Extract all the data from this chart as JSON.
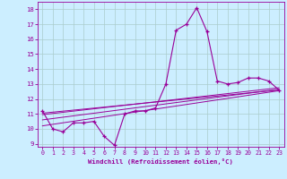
{
  "xlabel": "Windchill (Refroidissement éolien,°C)",
  "bg_color": "#cceeff",
  "grid_color": "#aacccc",
  "line_color": "#990099",
  "xlim": [
    -0.5,
    23.5
  ],
  "ylim": [
    8.8,
    18.5
  ],
  "yticks": [
    9,
    10,
    11,
    12,
    13,
    14,
    15,
    16,
    17,
    18
  ],
  "xticks": [
    0,
    1,
    2,
    3,
    4,
    5,
    6,
    7,
    8,
    9,
    10,
    11,
    12,
    13,
    14,
    15,
    16,
    17,
    18,
    19,
    20,
    21,
    22,
    23
  ],
  "main_x": [
    0,
    1,
    2,
    3,
    4,
    5,
    6,
    7,
    8,
    9,
    10,
    11,
    12,
    13,
    14,
    15,
    16,
    17,
    18,
    19,
    20,
    21,
    22,
    23
  ],
  "main_y": [
    11.2,
    10.0,
    9.8,
    10.4,
    10.4,
    10.5,
    9.5,
    8.9,
    11.0,
    11.2,
    11.2,
    11.4,
    13.0,
    16.6,
    17.0,
    18.1,
    16.5,
    13.2,
    13.0,
    13.1,
    13.4,
    13.4,
    13.2,
    12.6
  ],
  "line2_x": [
    0,
    23
  ],
  "line2_y": [
    10.2,
    12.55
  ],
  "line3_x": [
    0,
    23
  ],
  "line3_y": [
    10.6,
    12.65
  ],
  "line4_x": [
    0,
    23
  ],
  "line4_y": [
    10.95,
    12.75
  ],
  "line5_x": [
    0,
    23
  ],
  "line5_y": [
    11.05,
    12.6
  ]
}
